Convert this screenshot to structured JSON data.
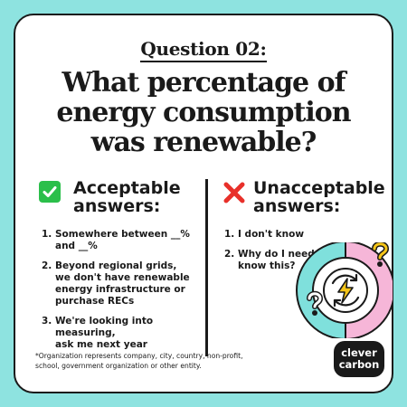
{
  "header": {
    "question_label": "Question 02:",
    "title_lines": [
      "What percentage of",
      "energy consumption",
      "was renewable?"
    ]
  },
  "acceptable": {
    "heading_lines": [
      "Acceptable",
      "answers:"
    ],
    "icon": "check-icon",
    "items": [
      {
        "num": "1.",
        "lines": [
          "Somewhere between __%",
          "and __%"
        ]
      },
      {
        "num": "2.",
        "lines": [
          "Beyond regional grids,",
          "we don't have renewable",
          "energy infrastructure or",
          "purchase RECs"
        ]
      },
      {
        "num": "3.",
        "lines": [
          "We're looking into measuring,",
          "ask me next year"
        ]
      }
    ]
  },
  "unacceptable": {
    "heading_lines": [
      "Unacceptable",
      "answers:"
    ],
    "icon": "cross-icon",
    "items": [
      {
        "num": "1.",
        "lines": [
          "I don't know"
        ]
      },
      {
        "num": "2.",
        "lines": [
          "Why do I need to",
          "know this?"
        ]
      }
    ]
  },
  "footnote": {
    "lines": [
      "*Organization represents company, city, country, non-profit,",
      "school, government organization or other entity."
    ]
  },
  "logo": {
    "lines": [
      "clever",
      "carbon"
    ]
  },
  "colors": {
    "background": "#8ee3e0",
    "check_green": "#2bbf4a",
    "cross_red": "#e8302a",
    "ring_teal": "#7fe0dc",
    "ring_pink": "#f6b6d8",
    "question_yellow": "#f5c518"
  }
}
